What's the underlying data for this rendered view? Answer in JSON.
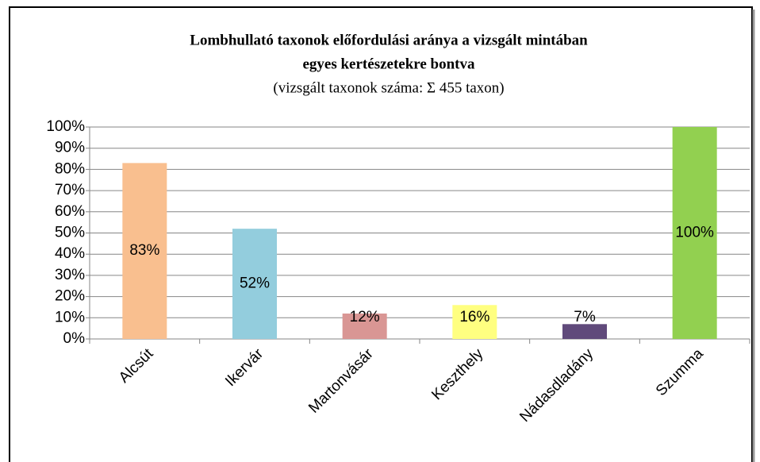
{
  "chart_data": {
    "type": "bar",
    "title": [
      "Lombhullató taxonok előfordulási aránya a vizsgált mintában",
      "egyes kertészetekre bontva"
    ],
    "subtitle": "(vizsgált taxonok száma: Σ 455 taxon)",
    "categories": [
      "Alcsút",
      "Ikervár",
      "Martonvásár",
      "Keszthely",
      "Nádasdladány",
      "Szumma"
    ],
    "values": [
      83,
      52,
      12,
      16,
      7,
      100
    ],
    "value_labels": [
      "83%",
      "52%",
      "12%",
      "16%",
      "7%",
      "100%"
    ],
    "colors": [
      "#f9bf8f",
      "#93cddd",
      "#d99694",
      "#ffff80",
      "#604a7b",
      "#92d050"
    ],
    "ylim": [
      0,
      100
    ],
    "yticks": [
      {
        "value": 0,
        "label": "0%"
      },
      {
        "value": 10,
        "label": "10%"
      },
      {
        "value": 20,
        "label": "20%"
      },
      {
        "value": 30,
        "label": "30%"
      },
      {
        "value": 40,
        "label": "40%"
      },
      {
        "value": 50,
        "label": "50%"
      },
      {
        "value": 60,
        "label": "60%"
      },
      {
        "value": 70,
        "label": "70%"
      },
      {
        "value": 80,
        "label": "80%"
      },
      {
        "value": 90,
        "label": "90%"
      },
      {
        "value": 100,
        "label": "100%"
      }
    ],
    "grid": true
  }
}
